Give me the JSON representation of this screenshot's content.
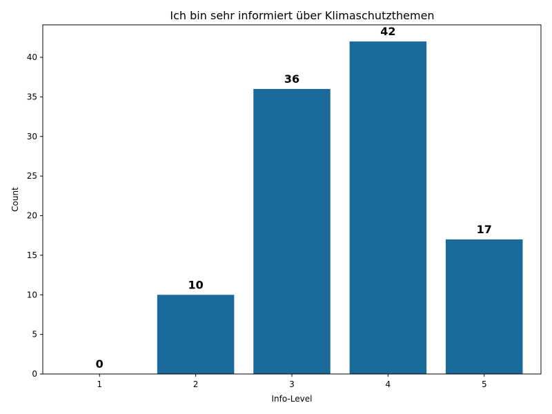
{
  "chart_data": {
    "type": "bar",
    "title": "Ich bin sehr informiert über Klimaschutzthemen",
    "xlabel": "Info-Level",
    "ylabel": "Count",
    "categories": [
      "1",
      "2",
      "3",
      "4",
      "5"
    ],
    "values": [
      0,
      10,
      36,
      42,
      17
    ],
    "data_labels": [
      "0",
      "10",
      "36",
      "42",
      "17"
    ],
    "ylim": [
      0,
      44.1
    ],
    "yticks": [
      0,
      5,
      10,
      15,
      20,
      25,
      30,
      35,
      40
    ],
    "grid": false,
    "legend": "none",
    "bar_color": "#1a6b9c"
  }
}
